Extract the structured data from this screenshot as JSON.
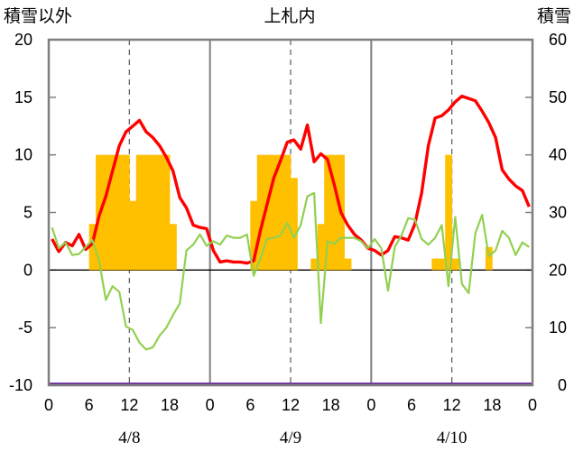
{
  "chart_data": {
    "type": "bar+line",
    "title": "上札内",
    "left_axis_label": "積雪以外",
    "right_axis_label": "積雪",
    "y_left": {
      "min": -10,
      "max": 20,
      "ticks": [
        20,
        15,
        10,
        5,
        0,
        -5,
        -10
      ]
    },
    "y_right": {
      "min": 0,
      "max": 60,
      "ticks": [
        60,
        50,
        40,
        30,
        20,
        10,
        0
      ]
    },
    "x": {
      "hours_total": 72,
      "tick_every": 6,
      "tick_labels": [
        "0",
        "6",
        "12",
        "18",
        "0",
        "6",
        "12",
        "18",
        "0",
        "6",
        "12",
        "18",
        "0"
      ],
      "day_labels": [
        "4/8",
        "4/9",
        "4/10"
      ]
    },
    "colors": {
      "bars": "#FFC000",
      "red": "#FF0000",
      "green": "#92D050",
      "purple": "#7030A0",
      "frame": "#7f7f7f",
      "grid": "#595959",
      "zero": "#000000"
    },
    "bars": {
      "axis": "left",
      "values": [
        0,
        0,
        0,
        0,
        0,
        0,
        4,
        10,
        10,
        10,
        10,
        10,
        6,
        10,
        10,
        10,
        10,
        10,
        4,
        0,
        0,
        0,
        0,
        0,
        0,
        0,
        0,
        0,
        0,
        0,
        6,
        10,
        10,
        10,
        10,
        10,
        8,
        0,
        0,
        1,
        4,
        10,
        10,
        10,
        1,
        0,
        0,
        0,
        0,
        0,
        0,
        0,
        0,
        0,
        0,
        0,
        0,
        1,
        1,
        10,
        1,
        0,
        0,
        0,
        0,
        2,
        0,
        0,
        0,
        0,
        0,
        0
      ]
    },
    "series": [
      {
        "color_key": "red",
        "axis": "left",
        "values": [
          2.7,
          1.6,
          2.4,
          2.1,
          3.1,
          1.8,
          2.3,
          4.7,
          6.4,
          8.6,
          10.8,
          12.0,
          12.5,
          13.0,
          12.0,
          11.5,
          10.8,
          9.8,
          8.6,
          6.3,
          5.4,
          3.9,
          3.7,
          3.6,
          1.7,
          0.7,
          0.8,
          0.7,
          0.7,
          0.6,
          0.8,
          3.4,
          5.7,
          8.0,
          9.5,
          11.1,
          11.3,
          10.5,
          12.6,
          9.4,
          10.1,
          9.6,
          7.4,
          5.0,
          3.9,
          3.1,
          2.6,
          1.9,
          1.7,
          1.3,
          1.7,
          2.9,
          2.8,
          2.6,
          4.0,
          6.7,
          10.8,
          13.2,
          13.4,
          13.9,
          14.6,
          15.1,
          14.9,
          14.7,
          13.8,
          12.8,
          11.5,
          8.7,
          7.9,
          7.3,
          6.9,
          5.5
        ]
      },
      {
        "color_key": "green",
        "axis": "left",
        "values": [
          3.7,
          1.9,
          2.4,
          1.3,
          1.4,
          2.0,
          2.6,
          0.8,
          -2.6,
          -1.4,
          -1.9,
          -4.9,
          -5.2,
          -6.3,
          -6.9,
          -6.7,
          -5.7,
          -5.0,
          -3.9,
          -2.9,
          1.7,
          2.2,
          3.1,
          2.1,
          2.5,
          2.2,
          3.0,
          2.8,
          2.8,
          3.1,
          -0.5,
          1.0,
          2.7,
          2.8,
          3.0,
          4.1,
          2.8,
          3.9,
          6.4,
          6.7,
          -4.6,
          2.5,
          2.3,
          2.8,
          2.8,
          2.8,
          2.5,
          1.9,
          2.7,
          1.9,
          -1.8,
          2.0,
          3.0,
          4.5,
          4.4,
          2.7,
          2.2,
          2.8,
          3.9,
          -1.4,
          4.6,
          -1.2,
          -2.0,
          3.2,
          4.8,
          1.2,
          1.7,
          3.4,
          2.8,
          1.3,
          2.4,
          2.0
        ]
      },
      {
        "color_key": "purple",
        "axis": "right",
        "values": "flat at 0 for all 72 hours"
      }
    ]
  }
}
